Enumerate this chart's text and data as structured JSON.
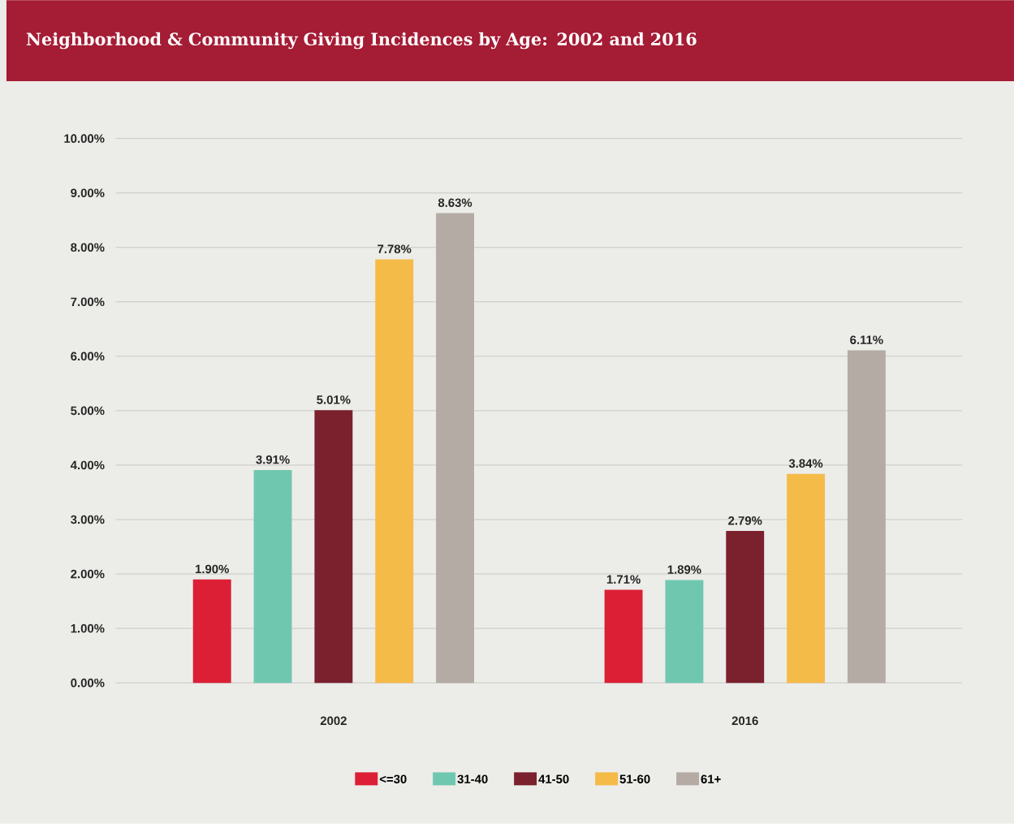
{
  "chart_data": {
    "type": "bar",
    "title": "Neighborhood & Community Giving Incidences by Age: 2002 and 2016",
    "categories": [
      "2002",
      "2016"
    ],
    "series": [
      {
        "name": "<=30",
        "color": "#dc1f35",
        "values": [
          1.9,
          1.71
        ],
        "value_labels": [
          "1.90%",
          "1.71%"
        ]
      },
      {
        "name": "31-40",
        "color": "#70c7b0",
        "values": [
          3.91,
          1.89
        ],
        "value_labels": [
          "3.91%",
          "1.89%"
        ]
      },
      {
        "name": "41-50",
        "color": "#7b202d",
        "values": [
          5.01,
          2.79
        ],
        "value_labels": [
          "5.01%",
          "2.79%"
        ]
      },
      {
        "name": "51-60",
        "color": "#f5bb48",
        "values": [
          7.78,
          3.84
        ],
        "value_labels": [
          "7.78%",
          "3.84%"
        ]
      },
      {
        "name": "61+",
        "color": "#b3aba4",
        "values": [
          8.63,
          6.11
        ],
        "value_labels": [
          "8.63%",
          "6.11%"
        ]
      }
    ],
    "ylim": [
      0,
      10
    ],
    "yticks": [
      {
        "value": 0,
        "label": "0.00%"
      },
      {
        "value": 1,
        "label": "1.00%"
      },
      {
        "value": 2,
        "label": "2.00%"
      },
      {
        "value": 3,
        "label": "3.00%"
      },
      {
        "value": 4,
        "label": "4.00%"
      },
      {
        "value": 5,
        "label": "5.00%"
      },
      {
        "value": 6,
        "label": "6.00%"
      },
      {
        "value": 7,
        "label": "7.00%"
      },
      {
        "value": 8,
        "label": "8.00%"
      },
      {
        "value": 9,
        "label": "9.00%"
      },
      {
        "value": 10,
        "label": "10.00%"
      }
    ],
    "grid": "y",
    "legend": "bottom"
  }
}
